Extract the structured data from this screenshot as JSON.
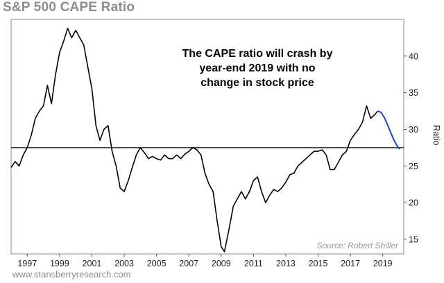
{
  "header": {
    "title": "S&P 500 CAPE Ratio"
  },
  "footer": {
    "website": "www.stansberryresearch.com"
  },
  "chart_data": {
    "type": "line",
    "title": "S&P 500 CAPE Ratio",
    "xlabel": "",
    "ylabel": "Ratio",
    "xlim": [
      1996.0,
      2020.3
    ],
    "ylim": [
      13,
      45
    ],
    "x_ticks": [
      1997,
      1999,
      2001,
      2003,
      2005,
      2007,
      2009,
      2011,
      2013,
      2015,
      2017,
      2019
    ],
    "y_ticks": [
      15,
      20,
      25,
      30,
      35,
      40
    ],
    "grid": false,
    "reference_line": {
      "y": 27.5
    },
    "annotation": [
      "The CAPE ratio will crash by",
      "year-end 2019 with no",
      "change in stock price"
    ],
    "source": "Source: Robert Shiller",
    "colors": {
      "historical": "#000000",
      "projection": "#1f3fd6",
      "reference": "#000000"
    },
    "series": [
      {
        "values": [
          [
            1996.0,
            24.8
          ],
          [
            1996.25,
            25.6
          ],
          [
            1996.5,
            25.0
          ],
          [
            1996.75,
            26.5
          ],
          [
            1997.0,
            27.5
          ],
          [
            1997.25,
            29.2
          ],
          [
            1997.5,
            31.5
          ],
          [
            1997.75,
            32.5
          ],
          [
            1998.0,
            33.2
          ],
          [
            1998.25,
            36.0
          ],
          [
            1998.5,
            33.5
          ],
          [
            1998.75,
            37.5
          ],
          [
            1999.0,
            40.5
          ],
          [
            1999.25,
            42.0
          ],
          [
            1999.5,
            43.8
          ],
          [
            1999.75,
            42.5
          ],
          [
            2000.0,
            43.5
          ],
          [
            2000.25,
            42.5
          ],
          [
            2000.5,
            41.5
          ],
          [
            2000.75,
            38.5
          ],
          [
            2001.0,
            35.5
          ],
          [
            2001.25,
            30.5
          ],
          [
            2001.5,
            28.5
          ],
          [
            2001.75,
            30.0
          ],
          [
            2002.0,
            30.5
          ],
          [
            2002.25,
            27.0
          ],
          [
            2002.5,
            25.0
          ],
          [
            2002.75,
            22.0
          ],
          [
            2003.0,
            21.5
          ],
          [
            2003.25,
            23.0
          ],
          [
            2003.5,
            24.8
          ],
          [
            2003.75,
            26.5
          ],
          [
            2004.0,
            27.5
          ],
          [
            2004.25,
            26.8
          ],
          [
            2004.5,
            26.0
          ],
          [
            2004.75,
            26.3
          ],
          [
            2005.0,
            26.0
          ],
          [
            2005.25,
            25.8
          ],
          [
            2005.5,
            26.5
          ],
          [
            2005.75,
            26.0
          ],
          [
            2006.0,
            26.0
          ],
          [
            2006.25,
            26.5
          ],
          [
            2006.5,
            26.0
          ],
          [
            2006.75,
            26.6
          ],
          [
            2007.0,
            27.0
          ],
          [
            2007.25,
            27.5
          ],
          [
            2007.5,
            27.2
          ],
          [
            2007.75,
            26.5
          ],
          [
            2008.0,
            24.0
          ],
          [
            2008.25,
            22.5
          ],
          [
            2008.5,
            21.5
          ],
          [
            2008.75,
            17.5
          ],
          [
            2009.0,
            14.0
          ],
          [
            2009.2,
            13.3
          ],
          [
            2009.5,
            16.5
          ],
          [
            2009.75,
            19.5
          ],
          [
            2010.0,
            20.5
          ],
          [
            2010.25,
            21.5
          ],
          [
            2010.5,
            20.5
          ],
          [
            2010.75,
            21.5
          ],
          [
            2011.0,
            23.0
          ],
          [
            2011.25,
            23.5
          ],
          [
            2011.5,
            21.5
          ],
          [
            2011.75,
            20.0
          ],
          [
            2012.0,
            21.0
          ],
          [
            2012.25,
            21.8
          ],
          [
            2012.5,
            21.5
          ],
          [
            2012.75,
            22.0
          ],
          [
            2013.0,
            22.8
          ],
          [
            2013.25,
            23.8
          ],
          [
            2013.5,
            24.0
          ],
          [
            2013.75,
            25.0
          ],
          [
            2014.0,
            25.5
          ],
          [
            2014.25,
            26.0
          ],
          [
            2014.5,
            26.5
          ],
          [
            2014.75,
            27.0
          ],
          [
            2015.0,
            27.0
          ],
          [
            2015.25,
            27.2
          ],
          [
            2015.5,
            26.5
          ],
          [
            2015.75,
            24.5
          ],
          [
            2016.0,
            24.5
          ],
          [
            2016.25,
            25.5
          ],
          [
            2016.5,
            26.5
          ],
          [
            2016.75,
            27.0
          ],
          [
            2017.0,
            28.5
          ],
          [
            2017.25,
            29.3
          ],
          [
            2017.5,
            30.0
          ],
          [
            2017.75,
            31.0
          ],
          [
            2018.0,
            33.2
          ],
          [
            2018.25,
            31.5
          ],
          [
            2018.5,
            32.0
          ],
          [
            2018.7,
            32.5
          ]
        ]
      },
      {
        "values": [
          [
            2018.7,
            32.5
          ],
          [
            2018.9,
            32.3
          ],
          [
            2019.1,
            31.6
          ],
          [
            2019.3,
            30.6
          ],
          [
            2019.5,
            29.5
          ],
          [
            2019.7,
            28.5
          ],
          [
            2019.9,
            27.7
          ],
          [
            2020.05,
            27.3
          ]
        ]
      }
    ]
  }
}
